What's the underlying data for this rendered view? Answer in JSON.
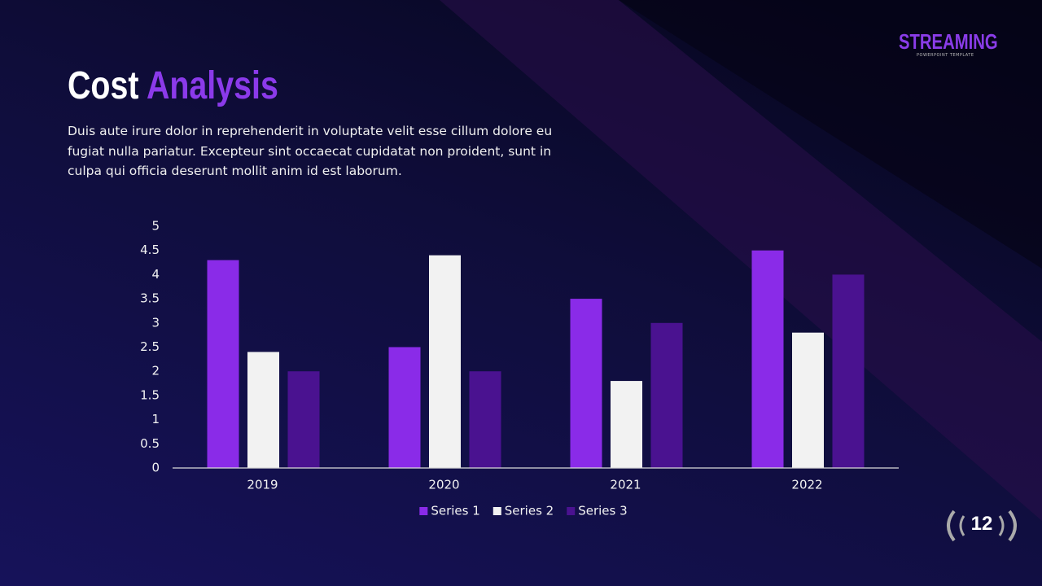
{
  "slide": {
    "title_first": "Cost",
    "title_second": "Analysis",
    "body": "Duis aute irure dolor in reprehenderit in voluptate velit esse cillum dolore eu fugiat nulla pariatur. Excepteur sint occaecat cupidatat non proident, sunt in culpa qui officia deserunt mollit anim id est laborum.",
    "logo": "STREAMING",
    "logo_subtitle": "POWERPOINT TEMPLATE",
    "page_number": "12"
  },
  "chart_data": {
    "type": "bar",
    "categories": [
      "2019",
      "2020",
      "2021",
      "2022"
    ],
    "series": [
      {
        "name": "Series 1",
        "color": "#8a2be8",
        "values": [
          4.3,
          2.5,
          3.5,
          4.5
        ]
      },
      {
        "name": "Series 2",
        "color": "#f2f2f2",
        "values": [
          2.4,
          4.4,
          1.8,
          2.8
        ]
      },
      {
        "name": "Series 3",
        "color": "#4a1290",
        "values": [
          2,
          2,
          3,
          4
        ]
      }
    ],
    "ylim": [
      0,
      5
    ],
    "yticks": [
      0,
      0.5,
      1,
      1.5,
      2,
      2.5,
      3,
      3.5,
      4,
      4.5,
      5
    ],
    "grid": false,
    "legend": "bottom"
  }
}
